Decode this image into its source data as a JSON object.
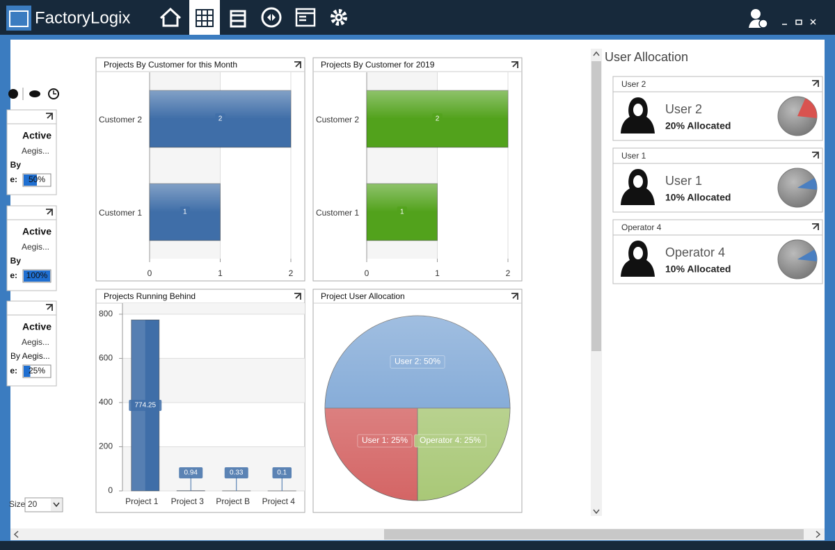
{
  "app": {
    "logo": "FactoryLogix"
  },
  "left_cards": [
    {
      "status": "Active",
      "name": "Aegis...",
      "by": "By",
      "field": "e:",
      "progress": 50,
      "progress_label": "50%"
    },
    {
      "status": "Active",
      "name": "Aegis...",
      "by": "By",
      "field": "e:",
      "progress": 100,
      "progress_label": "100%"
    },
    {
      "status": "Active",
      "name": "Aegis...",
      "by": "By Aegis...",
      "field": "e:",
      "progress": 25,
      "progress_label": "25%"
    }
  ],
  "page_size": {
    "label": "Size",
    "value": "20"
  },
  "user_allocation": {
    "title": "User Allocation",
    "users": [
      {
        "title": "User 2",
        "name": "User 2",
        "allocation": 20,
        "allocation_label": "20% Allocated",
        "color": "#d9534f"
      },
      {
        "title": "User 1",
        "name": "User 1",
        "allocation": 10,
        "allocation_label": "10% Allocated",
        "color": "#4a7fc1"
      },
      {
        "title": "Operator 4",
        "name": "Operator 4",
        "allocation": 10,
        "allocation_label": "10% Allocated",
        "color": "#4a7fc1"
      }
    ]
  },
  "chart_data": [
    {
      "type": "hbar",
      "title": "Projects By Customer for this Month",
      "categories": [
        "Customer 2",
        "Customer 1"
      ],
      "values": [
        2,
        1
      ],
      "color": "#3f6ea8",
      "xlim": [
        0,
        2
      ],
      "xticks": [
        0,
        1,
        2
      ],
      "grid": true
    },
    {
      "type": "hbar",
      "title": "Projects By Customer for 2019",
      "categories": [
        "Customer 2",
        "Customer 1"
      ],
      "values": [
        2,
        1
      ],
      "color": "#52a21c",
      "xlim": [
        0,
        2
      ],
      "xticks": [
        0,
        1,
        2
      ],
      "grid": true
    },
    {
      "type": "bar",
      "title": "Projects Running Behind",
      "categories": [
        "Project 1",
        "Project 3",
        "Project B",
        "Project 4"
      ],
      "values": [
        774.25,
        0.94,
        0.33,
        0.1
      ],
      "color": "#3f6ea8",
      "ylim": [
        0,
        850
      ],
      "yticks": [
        0,
        200,
        400,
        600,
        800
      ],
      "grid": true
    },
    {
      "type": "pie",
      "title": "Project User Allocation",
      "categories": [
        "User 2",
        "User 1",
        "Operator 4"
      ],
      "values": [
        50,
        25,
        25
      ],
      "value_labels": [
        "User 2: 50%",
        "User 1: 25%",
        "Operator 4: 25%"
      ],
      "colors": [
        "#6d9bd0",
        "#d46565",
        "#a9c877"
      ]
    }
  ]
}
